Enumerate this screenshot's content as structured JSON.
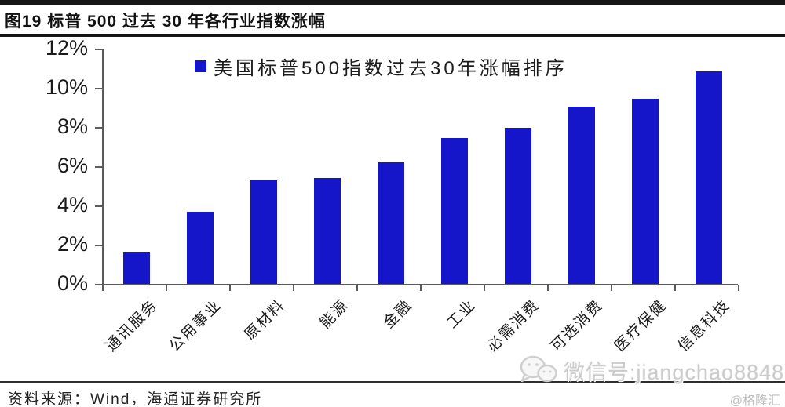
{
  "page": {
    "title": "图19 标普 500 过去 30 年各行业指数涨幅",
    "source_note": "资料来源：Wind，海通证券研究所",
    "watermark": {
      "icon": "wechat-icon",
      "text": "微信号:jiangchao8848",
      "brand": "@格隆汇"
    }
  },
  "chart_data": {
    "type": "bar",
    "title": "",
    "legend": [
      "美国标普500指数过去30年涨幅排序"
    ],
    "legend_position": "top-center",
    "categories": [
      "通讯服务",
      "公用事业",
      "原材料",
      "能源",
      "金融",
      "工业",
      "必需消费",
      "可选消费",
      "医疗保健",
      "信息科技"
    ],
    "values": [
      1.65,
      3.7,
      5.3,
      5.4,
      6.2,
      7.45,
      7.95,
      9.05,
      9.45,
      10.85
    ],
    "unit": "%",
    "xlabel": "",
    "ylabel": "",
    "ylim": [
      0,
      12
    ],
    "ytick_step": 2,
    "ytick_labels": [
      "0%",
      "2%",
      "4%",
      "6%",
      "8%",
      "10%",
      "12%"
    ],
    "grid": false,
    "x_labels_rotation_deg": -45,
    "bar_color": "#1515C9",
    "axis_color": "#5a5a5a"
  }
}
